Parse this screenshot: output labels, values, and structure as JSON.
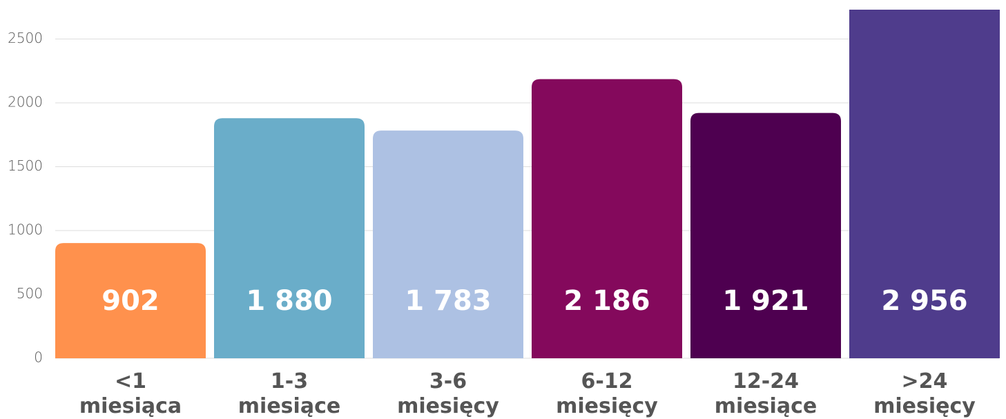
{
  "chart_data": {
    "type": "bar",
    "categories": [
      "<1\nmiesiąca",
      "1-3\nmiesiące",
      "3-6\nmiesięcy",
      "6-12\nmiesięcy",
      "12-24\nmiesiące",
      ">24\nmiesięcy"
    ],
    "values": [
      902,
      1880,
      1783,
      2186,
      1921,
      2956
    ],
    "value_labels": [
      "902",
      "1 880",
      "1 783",
      "2 186",
      "1 921",
      "2 956"
    ],
    "colors": [
      "#ff914d",
      "#6aadc9",
      "#adc1e3",
      "#84095c",
      "#4e0050",
      "#4f3c8c"
    ],
    "ylim": [
      0,
      2730
    ],
    "yticks": [
      0,
      500,
      1000,
      1500,
      2000,
      2500
    ],
    "grid": true
  }
}
